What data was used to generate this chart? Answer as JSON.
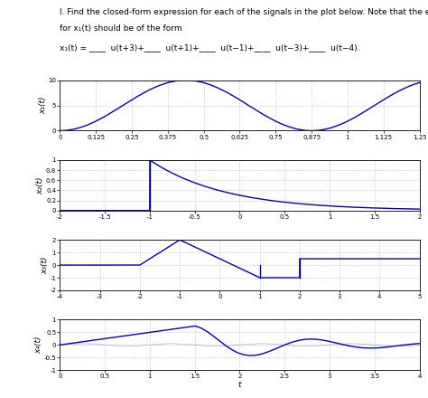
{
  "line1": "I. Find the closed-form expression for each of the signals in the plot below. Note that the expression",
  "line2": "for x₁(t) should be of the form",
  "formula_text": "x₁(t) = ____  u(t+3)+____  u(t+1)+____  u(t−1)+____  u(t−3)+____  u(t−4).",
  "plot1": {
    "ylabel": "x₁(t)",
    "xlim": [
      0,
      1.25
    ],
    "ylim": [
      0,
      10
    ],
    "xticks": [
      0,
      0.125,
      0.25,
      0.375,
      0.5,
      0.625,
      0.75,
      0.875,
      1,
      1.125,
      1.25
    ],
    "xticklabels": [
      "0",
      "0.125",
      "0.25",
      "0.375",
      "0.5",
      "0.625",
      "0.75",
      "0.875",
      "1",
      "1.125",
      "1.25"
    ],
    "yticks": [
      0,
      5,
      10
    ],
    "yticklabels": [
      "0",
      "5",
      "10"
    ]
  },
  "plot2": {
    "ylabel": "x₂(t)",
    "xlim": [
      -2,
      2
    ],
    "ylim": [
      0,
      1
    ],
    "xticks": [
      -2,
      -1.5,
      -1,
      -0.5,
      0,
      0.5,
      1,
      1.5,
      2
    ],
    "xticklabels": [
      "-2",
      "-1.5",
      "-1",
      "-0.5",
      "0",
      "0.5",
      "1",
      "1.5",
      "2"
    ],
    "yticks": [
      0,
      0.2,
      0.4,
      0.6,
      0.8,
      1
    ],
    "yticklabels": [
      "0",
      "0.2",
      "0.4",
      "0.6",
      "0.8",
      "1"
    ]
  },
  "plot3": {
    "ylabel": "x₃(t)",
    "xlim": [
      -4,
      5
    ],
    "ylim": [
      -2,
      2
    ],
    "xticks": [
      -4,
      -3,
      -2,
      -1,
      0,
      1,
      2,
      3,
      4,
      5
    ],
    "xticklabels": [
      "-4",
      "-3",
      "-2",
      "-1",
      "0",
      "1",
      "2",
      "3",
      "4",
      "5"
    ],
    "yticks": [
      -2,
      -1,
      0,
      1,
      2
    ],
    "yticklabels": [
      "-2",
      "-1",
      "0",
      "1",
      "2"
    ]
  },
  "plot4": {
    "ylabel": "x₄(t)",
    "xlabel": "t",
    "xlim": [
      0,
      4
    ],
    "ylim": [
      -1,
      1
    ],
    "xticks": [
      0,
      0.5,
      1,
      1.5,
      2,
      2.5,
      3,
      3.5,
      4
    ],
    "xticklabels": [
      "0",
      "0.5",
      "1",
      "1.5",
      "2",
      "2.5",
      "3",
      "3.5",
      "4"
    ],
    "yticks": [
      -1,
      -0.5,
      0,
      0.5,
      1
    ],
    "yticklabels": [
      "-1",
      "-0.5",
      "0",
      "0.5",
      "1"
    ]
  },
  "line_color": "#0000CC",
  "thin_line_color": "#6688CC",
  "grid_color": "#AAAAAA",
  "grid_linestyle": ":"
}
